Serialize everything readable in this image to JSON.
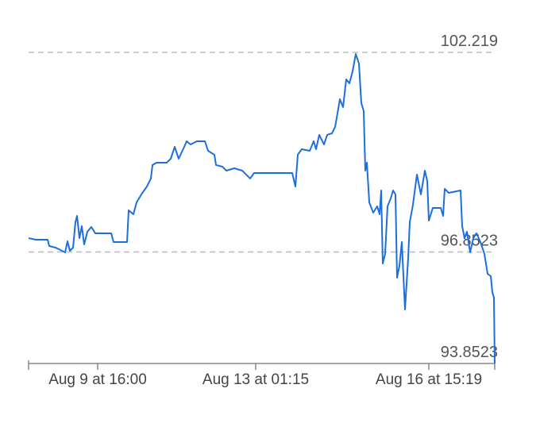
{
  "chart_data": {
    "type": "line",
    "color": "#1e6fdc",
    "x": [
      0,
      9,
      24,
      26,
      34,
      42,
      46,
      49,
      52,
      56,
      59,
      61,
      64,
      67,
      70,
      74,
      79,
      84,
      104,
      107,
      124,
      126,
      132,
      136,
      142,
      149,
      154,
      156,
      161,
      174,
      179,
      184,
      189,
      196,
      199,
      204,
      212,
      222,
      226,
      234,
      236,
      244,
      249,
      259,
      269,
      279,
      284,
      304,
      332,
      336,
      339,
      344,
      354,
      359,
      362,
      366,
      372,
      376,
      382,
      386,
      392,
      396,
      400,
      404,
      408,
      412,
      416,
      419,
      422,
      424,
      426,
      429,
      434,
      439,
      442,
      444,
      446,
      449,
      452,
      456,
      459,
      462,
      464,
      467,
      470,
      474,
      478,
      480,
      484,
      489,
      494,
      499,
      502,
      504,
      509,
      519,
      522,
      524,
      529,
      544,
      546,
      549,
      552,
      556,
      560,
      564,
      569,
      574,
      578,
      582,
      584,
      586,
      587
    ],
    "values": [
      97.224,
      97.182,
      97.182,
      97.011,
      96.968,
      96.883,
      96.84,
      97.139,
      96.883,
      96.968,
      97.651,
      97.822,
      97.224,
      97.545,
      97.054,
      97.395,
      97.524,
      97.353,
      97.353,
      97.118,
      97.118,
      97.972,
      97.865,
      98.185,
      98.399,
      98.612,
      98.826,
      99.189,
      99.253,
      99.253,
      99.359,
      99.679,
      99.359,
      99.679,
      99.829,
      99.743,
      99.829,
      99.829,
      99.573,
      99.466,
      99.189,
      99.146,
      99.039,
      99.103,
      99.039,
      98.826,
      98.975,
      98.975,
      98.975,
      98.612,
      99.466,
      99.615,
      99.573,
      99.829,
      99.615,
      100.0,
      99.743,
      100.0,
      100.042,
      100.213,
      100.96,
      100.747,
      101.494,
      101.387,
      101.707,
      102.177,
      101.92,
      100.854,
      100.64,
      99.039,
      99.253,
      98.185,
      97.908,
      98.079,
      97.865,
      98.505,
      96.542,
      96.798,
      98.079,
      98.292,
      98.505,
      98.399,
      96.158,
      96.478,
      97.118,
      95.304,
      96.691,
      97.651,
      98.121,
      98.932,
      98.399,
      99.039,
      98.762,
      97.694,
      98.036,
      98.036,
      97.822,
      98.548,
      98.441,
      98.505,
      97.545,
      97.224,
      97.395,
      96.84,
      97.224,
      97.353,
      97.118,
      96.798,
      96.264,
      96.2,
      95.773,
      95.624,
      93.8523
    ],
    "xlim": [
      0,
      587
    ],
    "xticks": [
      {
        "value": 87,
        "label": "Aug 9 at 16:00"
      },
      {
        "value": 286,
        "label": "Aug 13 at 01:15"
      },
      {
        "value": 504,
        "label": "Aug 16 at 15:19"
      }
    ],
    "ylim": [
      93.8523,
      102.219
    ],
    "yticks": [
      93.8523,
      96.8523,
      102.219
    ],
    "grid": true
  }
}
